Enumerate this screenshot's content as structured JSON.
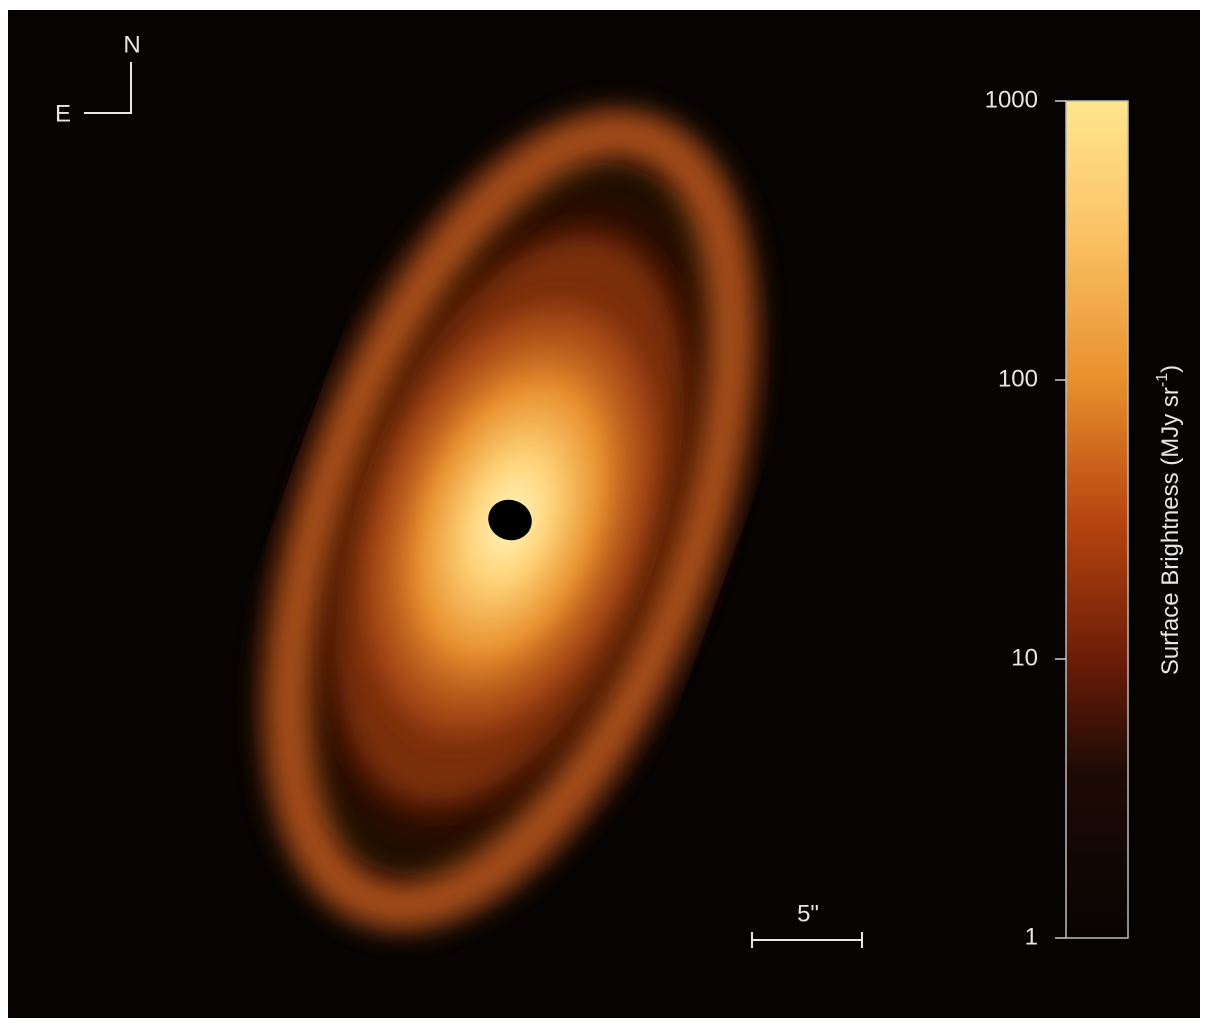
{
  "compass": {
    "north": "N",
    "east": "E"
  },
  "scale_bar": {
    "label": "5\""
  },
  "colorbar": {
    "label": "Surface Brightness (MJy sr",
    "label_superscript": "-1",
    "label_end": ")",
    "scale": "log",
    "lim": [
      1,
      1000
    ],
    "ticks": [
      1,
      10,
      100,
      1000
    ]
  }
}
